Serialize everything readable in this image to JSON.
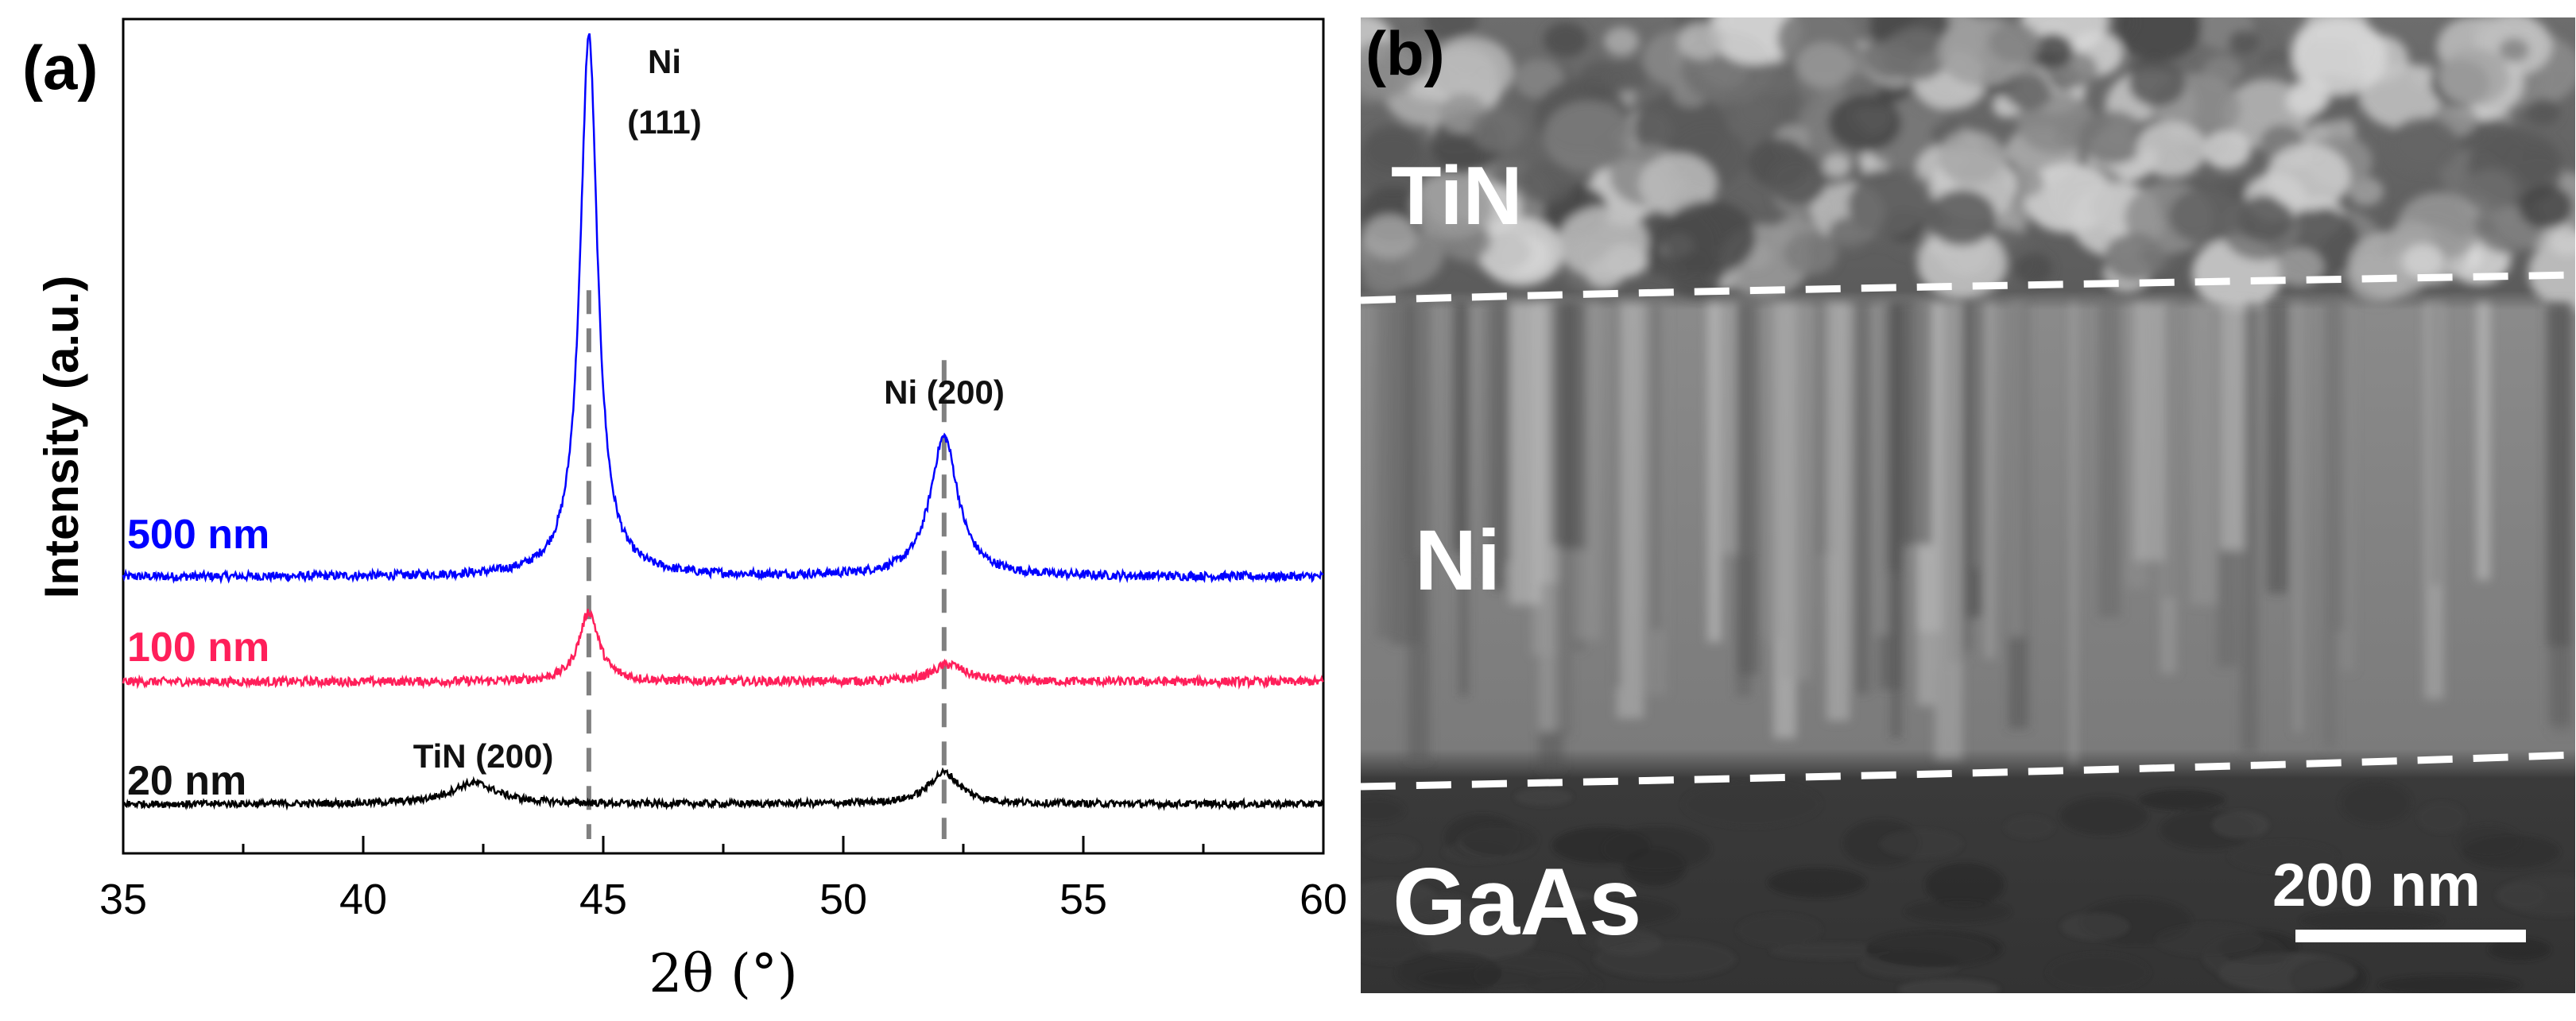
{
  "panel_a": {
    "label": "(a)"
  },
  "panel_b": {
    "label": "(b)",
    "layers": {
      "top": "TiN",
      "middle": "Ni",
      "bottom": "GaAs"
    },
    "scale_bar_text": "200 nm"
  },
  "chart_data": {
    "type": "line",
    "xlabel": "2θ (°)",
    "ylabel": "Intensity (a.u.)",
    "xlim": [
      35,
      60
    ],
    "xticks": [
      "35",
      "40",
      "45",
      "50",
      "55",
      "60"
    ],
    "series": [
      {
        "name": "500 nm",
        "color": "#0000ff",
        "baseline": 0.0,
        "noise": 0.025,
        "peaks": [
          {
            "center": 44.7,
            "height": 1.55,
            "width": 0.22
          },
          {
            "center": 52.1,
            "height": 0.4,
            "width": 0.35
          }
        ]
      },
      {
        "name": "100 nm",
        "color": "#ff1f5a",
        "baseline": -0.3,
        "noise": 0.025,
        "peaks": [
          {
            "center": 44.7,
            "height": 0.2,
            "width": 0.25
          },
          {
            "center": 52.2,
            "height": 0.05,
            "width": 0.4
          }
        ]
      },
      {
        "name": "20 nm",
        "color": "#000000",
        "baseline": -0.65,
        "noise": 0.02,
        "peaks": [
          {
            "center": 42.3,
            "height": 0.06,
            "width": 0.6
          },
          {
            "center": 52.1,
            "height": 0.09,
            "width": 0.4
          }
        ]
      }
    ],
    "peak_annotations": [
      {
        "line1": "Ni",
        "line2": "(111)",
        "x": 44.7
      },
      {
        "line1": "Ni (200)",
        "x": 52.1
      },
      {
        "line1": "TiN (200)",
        "x": 42.3
      }
    ],
    "reference_lines": [
      44.7,
      52.1
    ]
  }
}
